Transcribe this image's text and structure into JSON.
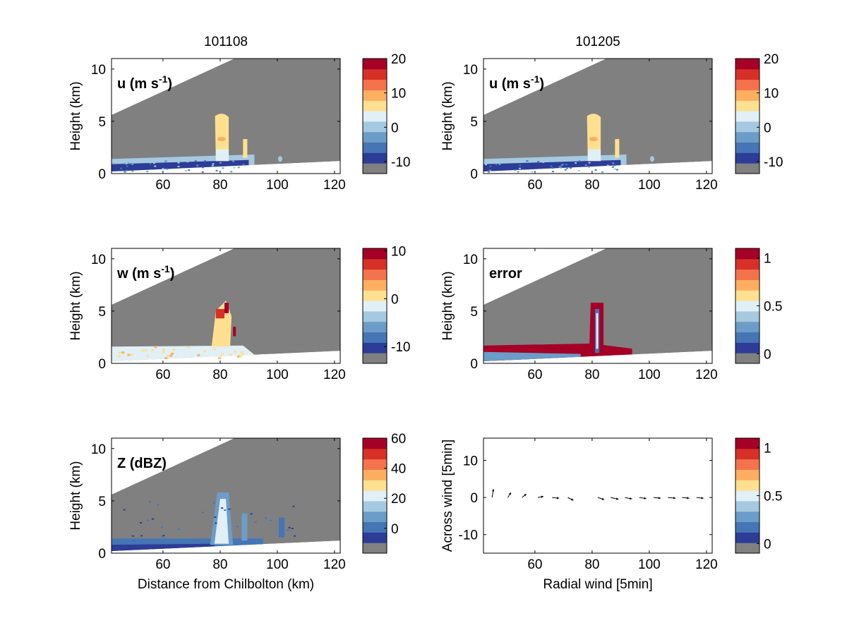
{
  "colorscale": [
    "#808080",
    "#2c3c97",
    "#4575b4",
    "#6c9cc8",
    "#a5c9e0",
    "#e0f0f6",
    "#fee090",
    "#fdae61",
    "#f4734c",
    "#d73027",
    "#a50026"
  ],
  "colors": {
    "radar_mask": "#808080",
    "axes": "#000000",
    "background": "#ffffff"
  },
  "column_titles": [
    "101108",
    "101205"
  ],
  "chart_data": [
    {
      "type": "heatmap",
      "column_title": "101108",
      "panel_label": "u (m s",
      "panel_label_sup": "-1",
      "panel_label_end": ")",
      "ylabel": "Height (km)",
      "xlabel": "",
      "xlim": [
        42,
        122
      ],
      "ylim": [
        0,
        11
      ],
      "xticks": [
        60,
        80,
        100,
        120
      ],
      "yticks": [
        0,
        5,
        10
      ],
      "colorbar": {
        "ticks": [
          20,
          10,
          0,
          -10
        ],
        "range": [
          -13.5,
          20
        ]
      },
      "field": {
        "kind": "u",
        "cloud_top_km": 5.8,
        "cloud_x_km": [
          78.5,
          83
        ]
      }
    },
    {
      "type": "heatmap",
      "column_title": "101205",
      "panel_label": "u (m s",
      "panel_label_sup": "-1",
      "panel_label_end": ")",
      "ylabel": "Height (km)",
      "xlabel": "",
      "xlim": [
        42,
        122
      ],
      "ylim": [
        0,
        11
      ],
      "xticks": [
        60,
        80,
        100,
        120
      ],
      "yticks": [
        0,
        5,
        10
      ],
      "colorbar": {
        "ticks": [
          20,
          10,
          0,
          -10
        ],
        "range": [
          -13.5,
          20
        ]
      },
      "field": {
        "kind": "u",
        "cloud_top_km": 5.8,
        "cloud_x_km": [
          78.5,
          83
        ]
      }
    },
    {
      "type": "heatmap",
      "panel_label": "w (m s",
      "panel_label_sup": "-1",
      "panel_label_end": ")",
      "ylabel": "Height (km)",
      "xlabel": "",
      "xlim": [
        42,
        122
      ],
      "ylim": [
        0,
        11
      ],
      "xticks": [
        60,
        80,
        100,
        120
      ],
      "yticks": [
        0,
        5,
        10
      ],
      "colorbar": {
        "ticks": [
          10,
          0,
          -10
        ],
        "range": [
          -13.5,
          10.5
        ]
      },
      "field": {
        "kind": "w",
        "cloud_top_km": 6.0,
        "cloud_x_km": [
          77,
          84
        ]
      }
    },
    {
      "type": "heatmap",
      "panel_label": "error",
      "panel_label_sup": "",
      "panel_label_end": "",
      "ylabel": "Height (km)",
      "xlabel": "",
      "xlim": [
        42,
        122
      ],
      "ylim": [
        0,
        11
      ],
      "xticks": [
        60,
        80,
        100,
        120
      ],
      "yticks": [
        0,
        5,
        10
      ],
      "colorbar": {
        "ticks": [
          1,
          0.5,
          0
        ],
        "range": [
          -0.1,
          1.1
        ]
      },
      "field": {
        "kind": "error",
        "cloud_top_km": 5.8,
        "cloud_x_km": [
          79,
          84
        ]
      }
    },
    {
      "type": "heatmap",
      "panel_label": "Z (dBZ)",
      "panel_label_sup": "",
      "panel_label_end": "",
      "ylabel": "Height (km)",
      "xlabel": "Distance from Chilbolton (km)",
      "xlim": [
        42,
        122
      ],
      "ylim": [
        0,
        11
      ],
      "xticks": [
        60,
        80,
        100,
        120
      ],
      "yticks": [
        0,
        5,
        10
      ],
      "colorbar": {
        "ticks": [
          60,
          40,
          20,
          0
        ],
        "range": [
          -16.5,
          60
        ]
      },
      "field": {
        "kind": "z",
        "cloud_top_km": 5.8,
        "cloud_x_km": [
          77,
          84
        ]
      }
    },
    {
      "type": "scatter",
      "panel_label": "",
      "panel_label_sup": "",
      "panel_label_end": "",
      "ylabel": "Across wind [5min]",
      "xlabel": "Radial wind [5min]",
      "xlim": [
        42,
        122
      ],
      "ylim": [
        -15,
        16
      ],
      "xticks": [
        60,
        80,
        100,
        120
      ],
      "yticks": [
        10,
        0,
        -10
      ],
      "colorbar": {
        "ticks": [
          1,
          0.5,
          0
        ],
        "range": [
          -0.1,
          1.1
        ]
      },
      "vectors": [
        {
          "x": 45,
          "y": 0,
          "u": 0.4,
          "v": 2.4
        },
        {
          "x": 50.5,
          "y": 0,
          "u": 0.9,
          "v": 1.4
        },
        {
          "x": 55.5,
          "y": 0,
          "u": 1.2,
          "v": 1.0
        },
        {
          "x": 61,
          "y": 0,
          "u": 1.6,
          "v": 0.3
        },
        {
          "x": 66,
          "y": 0,
          "u": 2.0,
          "v": -0.2
        },
        {
          "x": 71.5,
          "y": 0,
          "u": 1.6,
          "v": -0.8
        },
        {
          "x": 82,
          "y": 0,
          "u": 1.8,
          "v": -0.6
        },
        {
          "x": 86.5,
          "y": 0,
          "u": 2.2,
          "v": -0.5
        },
        {
          "x": 91.5,
          "y": 0,
          "u": 2.0,
          "v": -0.4
        },
        {
          "x": 96.5,
          "y": 0,
          "u": 2.0,
          "v": -0.3
        },
        {
          "x": 101.5,
          "y": 0,
          "u": 2.0,
          "v": -0.2
        },
        {
          "x": 106.5,
          "y": 0,
          "u": 2.2,
          "v": -0.2
        },
        {
          "x": 111.5,
          "y": 0,
          "u": 2.0,
          "v": -0.2
        },
        {
          "x": 116.5,
          "y": 0,
          "u": 2.0,
          "v": -0.2
        }
      ]
    }
  ]
}
